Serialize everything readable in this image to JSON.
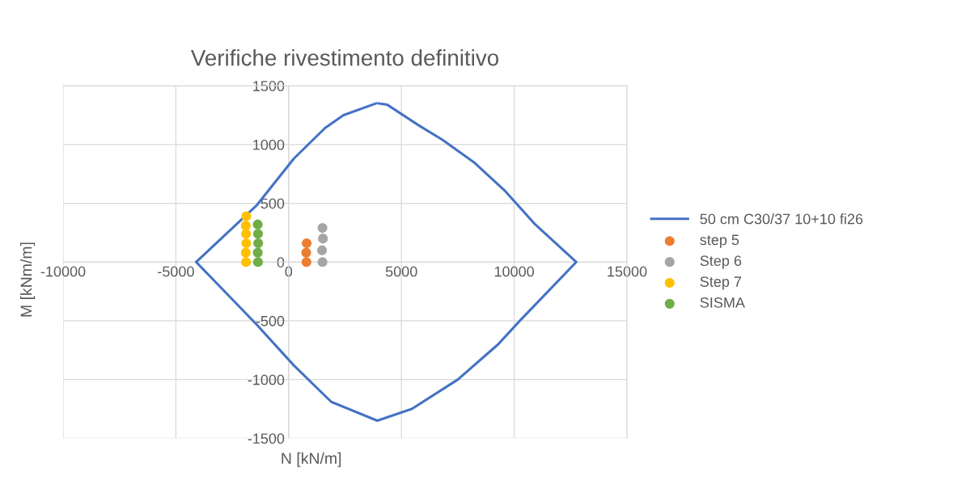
{
  "chart_data": {
    "type": "scatter",
    "title": "Verifiche rivestimento definitivo",
    "xlabel": "N [kN/m]",
    "ylabel": "M [kNm/m]",
    "xlim": [
      -10000,
      15000
    ],
    "xticks": [
      -10000,
      -5000,
      0,
      5000,
      10000,
      15000
    ],
    "ylim": [
      -1500,
      1500
    ],
    "yticks": [
      -1500,
      -1000,
      -500,
      0,
      500,
      1000,
      1500
    ],
    "grid": true,
    "legend": "right",
    "series": [
      {
        "name": "50 cm C30/37 10+10 fi26",
        "type": "line",
        "color": "#4472c4",
        "marker": "none",
        "line_style": "solid",
        "x": [
          4000,
          4360,
          5710,
          6820,
          8210,
          9570,
          10930,
          12750,
          10250,
          9290,
          7500,
          5460,
          3930,
          1890,
          230,
          -1430,
          -4100,
          -1430,
          230,
          1610,
          2430,
          3880
        ],
        "values": [
          1350,
          1340,
          1170,
          1040,
          850,
          610,
          320,
          0,
          -500,
          -700,
          -1000,
          -1250,
          -1350,
          -1190,
          -880,
          -530,
          0,
          480,
          880,
          1140,
          1250,
          1350
        ]
      },
      {
        "name": "step 5",
        "color": "#ed7d31",
        "marker": "circle",
        "x": [
          790,
          780,
          800
        ],
        "values": [
          0,
          80,
          160
        ]
      },
      {
        "name": "Step 6",
        "color": "#a5a5a5",
        "marker": "circle",
        "x": [
          1500,
          1480,
          1520,
          1500
        ],
        "values": [
          0,
          100,
          200,
          290
        ]
      },
      {
        "name": "Step 7",
        "color": "#ffc000",
        "marker": "circle",
        "x": [
          -1890,
          -1900,
          -1880,
          -1890,
          -1900,
          -1880
        ],
        "values": [
          0,
          80,
          160,
          240,
          310,
          390
        ]
      },
      {
        "name": "SISMA",
        "color": "#70ad47",
        "marker": "circle",
        "x": [
          -1360,
          -1370,
          -1350,
          -1360,
          -1370
        ],
        "values": [
          0,
          80,
          160,
          240,
          320
        ]
      }
    ]
  }
}
